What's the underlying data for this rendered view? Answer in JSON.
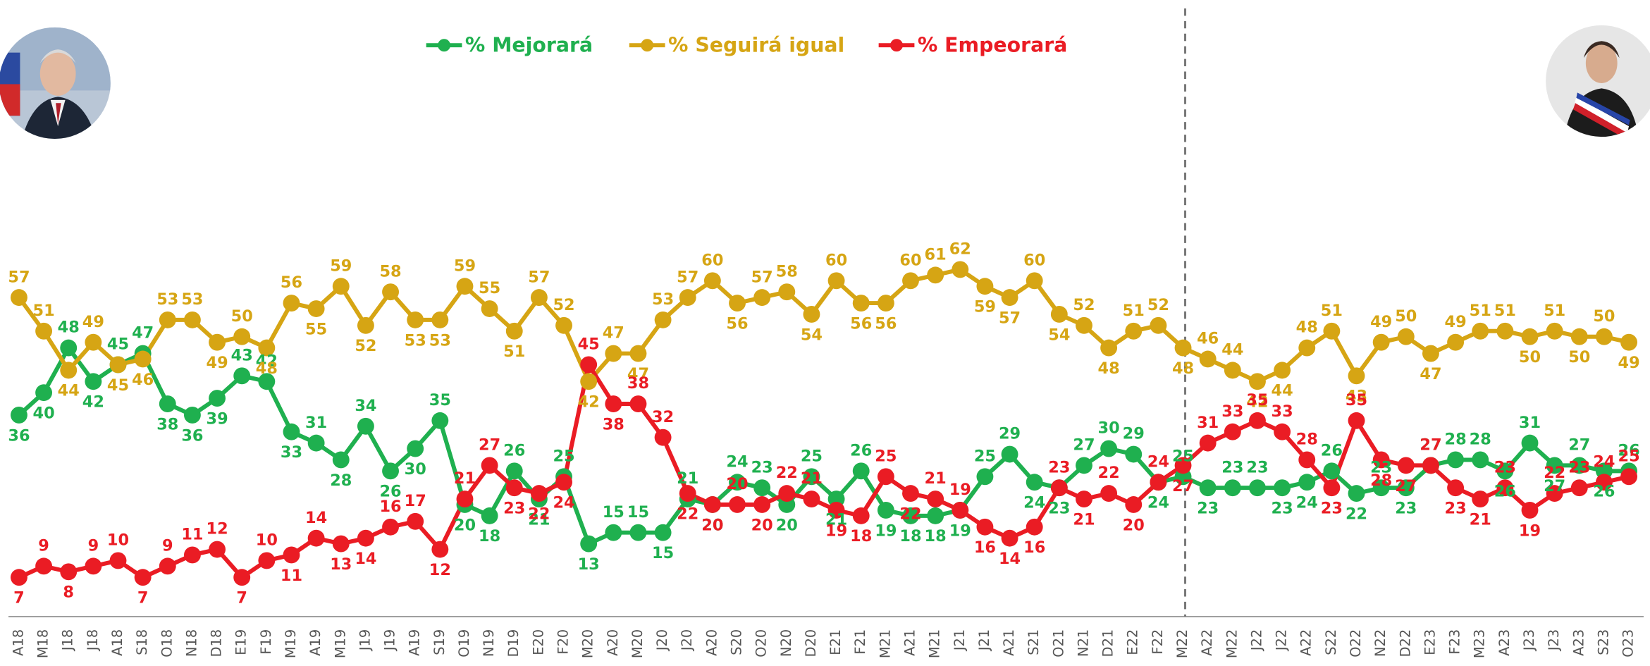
{
  "chart_data": {
    "type": "line",
    "categories": [
      "A18",
      "M18",
      "J18",
      "J18",
      "A18",
      "S18",
      "O18",
      "N18",
      "D18",
      "E19",
      "F19",
      "M19",
      "A19",
      "M19",
      "J19",
      "J19",
      "A19",
      "S19",
      "O19",
      "N19",
      "D19",
      "E20",
      "F20",
      "M20",
      "A20",
      "M20",
      "J20",
      "J20",
      "A20",
      "S20",
      "O20",
      "N20",
      "D20",
      "E21",
      "F21",
      "M21",
      "A21",
      "M21",
      "J21",
      "J21",
      "A21",
      "S21",
      "O21",
      "N21",
      "D21",
      "E22",
      "F22",
      "M22",
      "A22",
      "M22",
      "J22",
      "J22",
      "A22",
      "S22",
      "O22",
      "N22",
      "D22",
      "E23",
      "F23",
      "M23",
      "A23",
      "J23",
      "J23",
      "A23",
      "S23",
      "O23"
    ],
    "series": [
      {
        "name": "% Mejorará",
        "color": "#1fb04f",
        "values": [
          36,
          40,
          48,
          42,
          45,
          47,
          38,
          36,
          39,
          43,
          42,
          33,
          31,
          28,
          34,
          26,
          30,
          35,
          20,
          18,
          26,
          21,
          25,
          13,
          15,
          15,
          15,
          21,
          20,
          24,
          23,
          20,
          25,
          21,
          26,
          19,
          18,
          18,
          19,
          25,
          29,
          24,
          23,
          27,
          30,
          29,
          24,
          25,
          23,
          23,
          23,
          23,
          24,
          26,
          22,
          23,
          23,
          27,
          28,
          28,
          26,
          31,
          27,
          27,
          26,
          26
        ]
      },
      {
        "name": "% Seguirá igual",
        "color": "#d6a514",
        "values": [
          57,
          51,
          44,
          49,
          45,
          46,
          53,
          53,
          49,
          50,
          48,
          56,
          55,
          59,
          52,
          58,
          53,
          53,
          59,
          55,
          51,
          57,
          52,
          42,
          47,
          47,
          53,
          57,
          60,
          56,
          57,
          58,
          54,
          60,
          56,
          56,
          60,
          61,
          62,
          59,
          57,
          60,
          54,
          52,
          48,
          51,
          52,
          48,
          46,
          44,
          42,
          44,
          48,
          51,
          43,
          49,
          50,
          47,
          49,
          51,
          51,
          50,
          51,
          50,
          50,
          49
        ]
      },
      {
        "name": "% Empeorará",
        "color": "#ea1c24",
        "values": [
          7,
          9,
          8,
          9,
          10,
          7,
          9,
          11,
          12,
          7,
          10,
          11,
          14,
          13,
          14,
          16,
          17,
          12,
          21,
          27,
          23,
          22,
          24,
          45,
          38,
          38,
          32,
          22,
          20,
          20,
          20,
          22,
          21,
          19,
          18,
          25,
          22,
          21,
          19,
          16,
          14,
          16,
          23,
          21,
          22,
          20,
          24,
          27,
          31,
          33,
          35,
          33,
          28,
          23,
          35,
          28,
          27,
          27,
          23,
          21,
          23,
          19,
          22,
          23,
          24,
          25
        ]
      }
    ],
    "ylim": [
      0,
      70
    ],
    "legend": "top",
    "vertical_line": {
      "at": 47,
      "style": "dashed"
    }
  }
}
